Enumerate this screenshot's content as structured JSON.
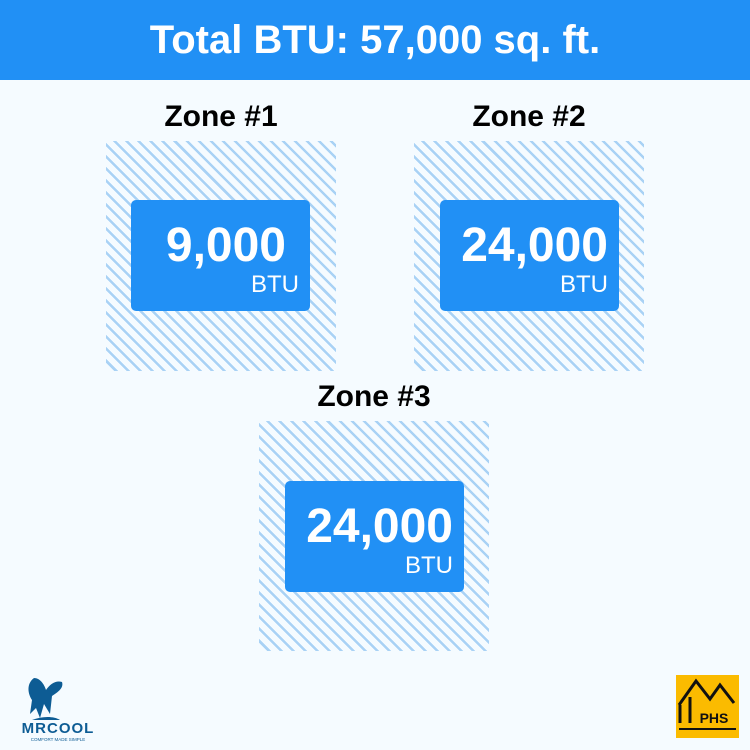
{
  "header": {
    "title": "Total BTU: 57,000 sq. ft."
  },
  "zones": [
    {
      "title": "Zone #1",
      "value": "9,000",
      "unit": "BTU"
    },
    {
      "title": "Zone #2",
      "value": "24,000",
      "unit": "BTU"
    },
    {
      "title": "Zone #3",
      "value": "24,000",
      "unit": "BTU"
    }
  ],
  "logos": {
    "mrcool": "MRCOOL",
    "mrcool_tagline": "COMFORT MADE SIMPLE",
    "phs": "PHS"
  },
  "colors": {
    "accent": "#2190f5",
    "background": "#f5fbff",
    "hatch": "#a9d2f5",
    "phs_yellow": "#fbbb00",
    "mrcool_blue": "#0d5c94"
  }
}
